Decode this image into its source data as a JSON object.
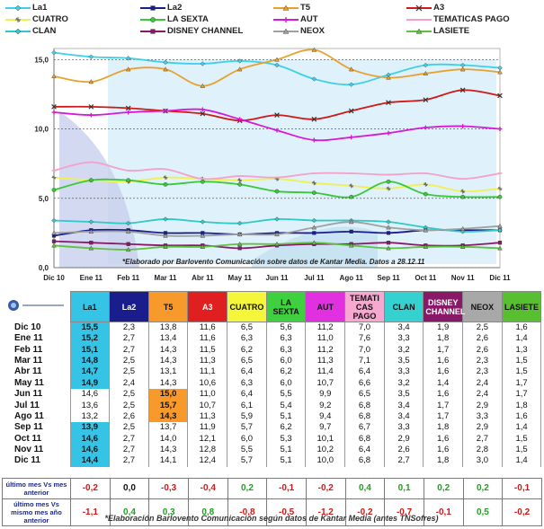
{
  "legend": [
    {
      "name": "La1",
      "color": "#3fd0e8",
      "marker": "diamond"
    },
    {
      "name": "La2",
      "color": "#1a1e8c",
      "marker": "square"
    },
    {
      "name": "T5",
      "color": "#e8a030",
      "marker": "triangle"
    },
    {
      "name": "A3",
      "color": "#d01818",
      "marker": "x"
    },
    {
      "name": "CUATRO",
      "color": "#f0f050",
      "marker": "star"
    },
    {
      "name": "LA SEXTA",
      "color": "#38c838",
      "marker": "circle"
    },
    {
      "name": "AUT",
      "color": "#d818d8",
      "marker": "plus"
    },
    {
      "name": "TEMATICAS PAGO",
      "color": "#f4a0c8",
      "marker": "dash"
    },
    {
      "name": "CLAN",
      "color": "#30c8c8",
      "marker": "diamond"
    },
    {
      "name": "DISNEY CHANNEL",
      "color": "#8a1868",
      "marker": "square"
    },
    {
      "name": "NEOX",
      "color": "#a0a0a0",
      "marker": "triangle"
    },
    {
      "name": "LASIETE",
      "color": "#60c040",
      "marker": "triangle"
    }
  ],
  "chart_data": {
    "type": "line",
    "x": [
      "Dic 10",
      "Ene 11",
      "Feb 11",
      "Mar 11",
      "Abr 11",
      "May 11",
      "Jun 11",
      "Jul 11",
      "Ago 11",
      "Sep 11",
      "Oct 11",
      "Nov 11",
      "Dic 11"
    ],
    "ylim": [
      0,
      15.8
    ],
    "yticks": [
      "0,0",
      "5,0",
      "10,0",
      "15,0"
    ],
    "ytick_values": [
      0,
      5,
      10,
      15
    ],
    "annotation": "*Elaborado por Barlovento Comunicación sobre datos de Kantar Media. Datos a 28.12.11",
    "series": [
      {
        "name": "La1",
        "values": [
          15.5,
          15.2,
          15.1,
          14.8,
          14.7,
          14.9,
          14.6,
          13.6,
          13.2,
          13.9,
          14.6,
          14.6,
          14.4
        ]
      },
      {
        "name": "La2",
        "values": [
          2.3,
          2.7,
          2.7,
          2.5,
          2.5,
          2.4,
          2.5,
          2.5,
          2.6,
          2.5,
          2.7,
          2.7,
          2.7
        ]
      },
      {
        "name": "T5",
        "values": [
          13.8,
          13.4,
          14.3,
          14.3,
          13.1,
          14.3,
          15.0,
          15.7,
          14.3,
          13.7,
          14.0,
          14.3,
          14.1
        ]
      },
      {
        "name": "A3",
        "values": [
          11.6,
          11.6,
          11.5,
          11.3,
          11.1,
          10.6,
          11.0,
          10.7,
          11.3,
          11.9,
          12.1,
          12.8,
          12.4
        ]
      },
      {
        "name": "CUATRO",
        "values": [
          6.5,
          6.3,
          6.2,
          6.5,
          6.4,
          6.3,
          6.4,
          6.1,
          5.9,
          5.7,
          6.0,
          5.5,
          5.7
        ]
      },
      {
        "name": "LA SEXTA",
        "values": [
          5.6,
          6.3,
          6.3,
          6.0,
          6.2,
          6.0,
          5.5,
          5.4,
          5.1,
          6.2,
          5.3,
          5.1,
          5.1
        ]
      },
      {
        "name": "AUT",
        "values": [
          11.2,
          11.0,
          11.2,
          11.3,
          11.4,
          10.7,
          9.9,
          9.2,
          9.4,
          9.7,
          10.1,
          10.2,
          10.0
        ]
      },
      {
        "name": "TEMATICAS PAGO",
        "values": [
          7.0,
          7.6,
          7.0,
          7.1,
          6.4,
          6.6,
          6.5,
          6.8,
          6.8,
          6.7,
          6.8,
          6.4,
          6.8
        ]
      },
      {
        "name": "CLAN",
        "values": [
          3.4,
          3.3,
          3.2,
          3.5,
          3.3,
          3.2,
          3.5,
          3.4,
          3.4,
          3.3,
          2.9,
          2.6,
          2.7
        ]
      },
      {
        "name": "DISNEY CHANNEL",
        "values": [
          1.9,
          1.8,
          1.7,
          1.6,
          1.6,
          1.4,
          1.6,
          1.7,
          1.7,
          1.8,
          1.6,
          1.6,
          1.8
        ]
      },
      {
        "name": "NEOX",
        "values": [
          2.5,
          2.6,
          2.6,
          2.3,
          2.3,
          2.4,
          2.4,
          2.9,
          3.3,
          2.9,
          2.7,
          2.8,
          3.0
        ]
      },
      {
        "name": "LASIETE",
        "values": [
          1.6,
          1.4,
          1.3,
          1.5,
          1.5,
          1.7,
          1.7,
          1.8,
          1.6,
          1.4,
          1.5,
          1.5,
          1.4
        ]
      }
    ]
  },
  "table": {
    "headers": [
      {
        "label": "La1",
        "bg": "#35c4e6",
        "fg": "#111111"
      },
      {
        "label": "La2",
        "bg": "#1a1e8c",
        "fg": "#ffffff"
      },
      {
        "label": "T5",
        "bg": "#f79a2b",
        "fg": "#111111"
      },
      {
        "label": "A3",
        "bg": "#e02020",
        "fg": "#ffffff"
      },
      {
        "label": "CUATRO",
        "bg": "#f5f53a",
        "fg": "#111111"
      },
      {
        "label": "LA SEXTA",
        "bg": "#3ed03e",
        "fg": "#111111"
      },
      {
        "label": "AUT",
        "bg": "#e030e0",
        "fg": "#111111"
      },
      {
        "label": "TEMATI CAS PAGO",
        "bg": "#f7a8d0",
        "fg": "#111111"
      },
      {
        "label": "CLAN",
        "bg": "#35d0d0",
        "fg": "#111111"
      },
      {
        "label": "DISNEY CHANNEL",
        "bg": "#8a1868",
        "fg": "#ffffff"
      },
      {
        "label": "NEOX",
        "bg": "#a8a8a8",
        "fg": "#111111"
      },
      {
        "label": "LASIETE",
        "bg": "#58c030",
        "fg": "#111111"
      }
    ],
    "rows": [
      {
        "month": "Dic 10",
        "values": [
          "15,5",
          "2,3",
          "13,8",
          "11,6",
          "6,5",
          "5,6",
          "11,2",
          "7,0",
          "3,4",
          "1,9",
          "2,5",
          "1,6"
        ],
        "hl": [
          0
        ]
      },
      {
        "month": "Ene 11",
        "values": [
          "15,2",
          "2,7",
          "13,4",
          "11,6",
          "6,3",
          "6,3",
          "11,0",
          "7,6",
          "3,3",
          "1,8",
          "2,6",
          "1,4"
        ],
        "hl": [
          0
        ]
      },
      {
        "month": "Feb 11",
        "values": [
          "15,1",
          "2,7",
          "14,3",
          "11,5",
          "6,2",
          "6,3",
          "11,2",
          "7,0",
          "3,2",
          "1,7",
          "2,6",
          "1,3"
        ],
        "hl": [
          0
        ]
      },
      {
        "month": "Mar 11",
        "values": [
          "14,8",
          "2,5",
          "14,3",
          "11,3",
          "6,5",
          "6,0",
          "11,3",
          "7,1",
          "3,5",
          "1,6",
          "2,3",
          "1,5"
        ],
        "hl": [
          0
        ]
      },
      {
        "month": "Abr 11",
        "values": [
          "14,7",
          "2,5",
          "13,1",
          "11,1",
          "6,4",
          "6,2",
          "11,4",
          "6,4",
          "3,3",
          "1,6",
          "2,3",
          "1,5"
        ],
        "hl": [
          0
        ]
      },
      {
        "month": "May 11",
        "values": [
          "14,9",
          "2,4",
          "14,3",
          "10,6",
          "6,3",
          "6,0",
          "10,7",
          "6,6",
          "3,2",
          "1,4",
          "2,4",
          "1,7"
        ],
        "hl": [
          0
        ]
      },
      {
        "month": "Jun 11",
        "values": [
          "14,6",
          "2,5",
          "15,0",
          "11,0",
          "6,4",
          "5,5",
          "9,9",
          "6,5",
          "3,5",
          "1,6",
          "2,4",
          "1,7"
        ],
        "hl": [
          2
        ]
      },
      {
        "month": "Jul 11",
        "values": [
          "13,6",
          "2,5",
          "15,7",
          "10,7",
          "6,1",
          "5,4",
          "9,2",
          "6,8",
          "3,4",
          "1,7",
          "2,9",
          "1,8"
        ],
        "hl": [
          2
        ]
      },
      {
        "month": "Ago 11",
        "values": [
          "13,2",
          "2,6",
          "14,3",
          "11,3",
          "5,9",
          "5,1",
          "9,4",
          "6,8",
          "3,4",
          "1,7",
          "3,3",
          "1,6"
        ],
        "hl": [
          2
        ]
      },
      {
        "month": "Sep 11",
        "values": [
          "13,9",
          "2,5",
          "13,7",
          "11,9",
          "5,7",
          "6,2",
          "9,7",
          "6,7",
          "3,3",
          "1,8",
          "2,9",
          "1,4"
        ],
        "hl": [
          0
        ]
      },
      {
        "month": "Oct 11",
        "values": [
          "14,6",
          "2,7",
          "14,0",
          "12,1",
          "6,0",
          "5,3",
          "10,1",
          "6,8",
          "2,9",
          "1,6",
          "2,7",
          "1,5"
        ],
        "hl": [
          0
        ]
      },
      {
        "month": "Nov 11",
        "values": [
          "14,6",
          "2,7",
          "14,3",
          "12,8",
          "5,5",
          "5,1",
          "10,2",
          "6,4",
          "2,6",
          "1,6",
          "2,8",
          "1,5"
        ],
        "hl": [
          0
        ]
      },
      {
        "month": "Dic 11",
        "values": [
          "14,4",
          "2,7",
          "14,1",
          "12,4",
          "5,7",
          "5,1",
          "10,0",
          "6,8",
          "2,7",
          "1,8",
          "3,0",
          "1,4"
        ],
        "hl": [
          0
        ]
      }
    ],
    "diff_rows": [
      {
        "label": "último mes Vs mes anterior",
        "values": [
          "-0,2",
          "0,0",
          "-0,3",
          "-0,4",
          "0,2",
          "-0,1",
          "-0,2",
          "0,4",
          "0,1",
          "0,2",
          "0,2",
          "-0,1"
        ]
      },
      {
        "label": "último mes Vs mismo mes año anterior",
        "values": [
          "-1,1",
          "0,4",
          "0,3",
          "0,8",
          "-0,8",
          "-0,5",
          "-1,2",
          "-0,2",
          "-0,7",
          "-0,1",
          "0,5",
          "-0,2"
        ]
      }
    ]
  },
  "colors": {
    "negative": "#d01818",
    "positive": "#20a020",
    "neutral": "#111111"
  },
  "footnote": "*Elaboración Barlovento Comunicación según datos de Kantar Media (antes TNSofres)"
}
